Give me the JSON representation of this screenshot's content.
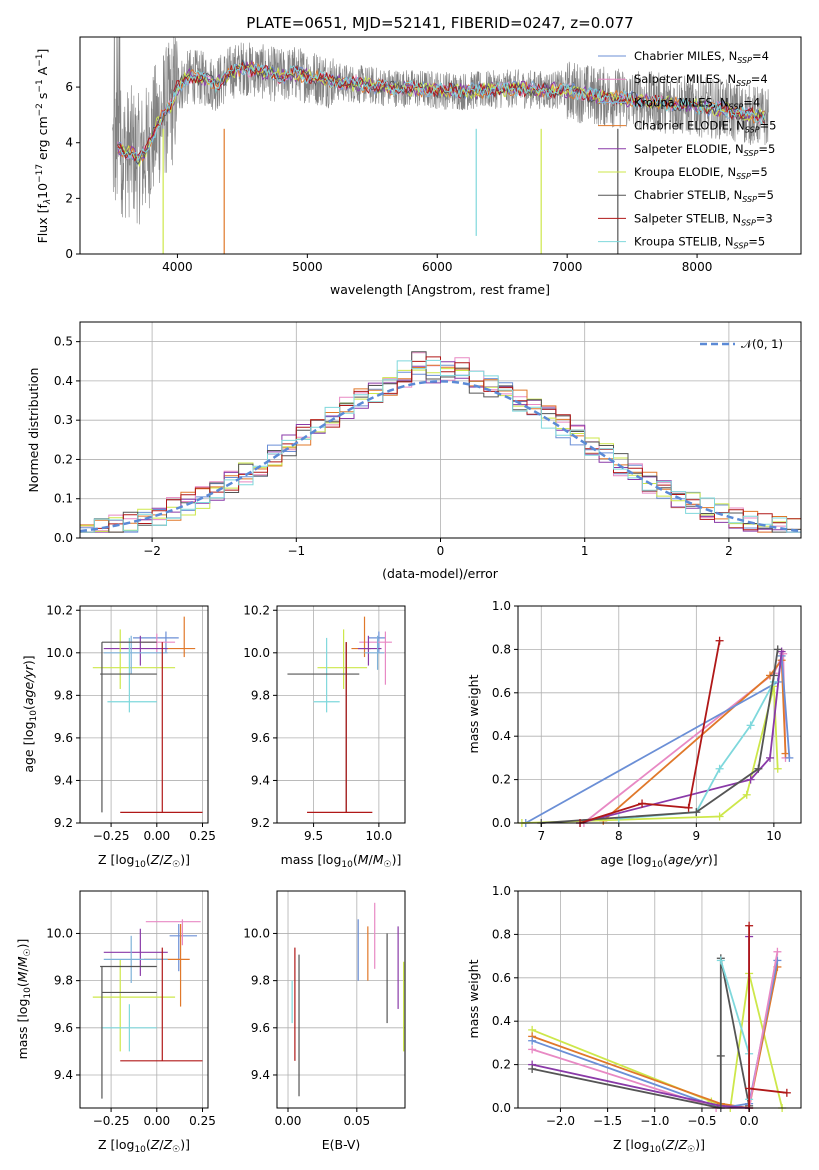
{
  "chart_data": [
    {
      "id": "spectrum",
      "type": "line",
      "title": "PLATE=0651, MJD=52141, FIBERID=0247, z=0.077",
      "xlabel": "wavelength [Angstrom, rest frame]",
      "ylabel": "Flux [f_λ 10^-17 erg cm^-2 s^-1 A^-1]",
      "xlim": [
        3250,
        8800
      ],
      "ylim": [
        0,
        7.8
      ],
      "xticks": [
        4000,
        5000,
        6000,
        7000,
        8000
      ],
      "yticks": [
        0,
        2,
        4,
        6
      ],
      "grid": false,
      "legend_position": "right",
      "observed_color": "#808080",
      "series": [
        {
          "name": "Chabrier MILES, N_SSP=4",
          "color": "#6b8fd6"
        },
        {
          "name": "Salpeter MILES, N_SSP=4",
          "color": "#e889c4"
        },
        {
          "name": "Kroupa MILES, N_SSP=4",
          "color": "#7fb2d9"
        },
        {
          "name": "Chabrier ELODIE, N_SSP=5",
          "color": "#e0782a"
        },
        {
          "name": "Salpeter ELODIE, N_SSP=5",
          "color": "#8a3aa8"
        },
        {
          "name": "Kroupa ELODIE, N_SSP=5",
          "color": "#cde74a"
        },
        {
          "name": "Chabrier STELIB, N_SSP=5",
          "color": "#555555"
        },
        {
          "name": "Salpeter STELIB, N_SSP=3",
          "color": "#b01818"
        },
        {
          "name": "Kroupa STELIB, N_SSP=5",
          "color": "#7fd8dc"
        }
      ],
      "model_continuum": {
        "x": [
          3550,
          3600,
          3650,
          3700,
          3750,
          3800,
          3850,
          3900,
          3950,
          4000,
          4100,
          4200,
          4300,
          4400,
          4500,
          4600,
          4700,
          4800,
          4900,
          5000,
          5200,
          5400,
          5600,
          5800,
          6000,
          6200,
          6400,
          6600,
          6800,
          7000,
          7200,
          7400,
          7600,
          7800,
          8000,
          8200,
          8400,
          8550
        ],
        "y": [
          3.8,
          3.6,
          3.7,
          3.4,
          3.6,
          4.2,
          4.7,
          5.1,
          5.3,
          6.0,
          6.4,
          6.3,
          6.1,
          6.5,
          6.7,
          6.6,
          6.5,
          6.4,
          6.5,
          6.4,
          6.2,
          6.1,
          6.0,
          5.95,
          5.9,
          5.85,
          5.9,
          5.95,
          5.9,
          5.9,
          5.7,
          5.6,
          5.5,
          5.4,
          5.3,
          5.2,
          5.0,
          4.9
        ]
      }
    },
    {
      "id": "residuals",
      "type": "bar",
      "xlabel": "(data-model)/error",
      "ylabel": "Normed distribution",
      "xlim": [
        -2.5,
        2.5
      ],
      "ylim": [
        0,
        0.55
      ],
      "xticks": [
        -2,
        -1,
        0,
        1,
        2
      ],
      "yticks": [
        0.0,
        0.1,
        0.2,
        0.3,
        0.4,
        0.5
      ],
      "grid": true,
      "legend_position": "top-right",
      "reference": {
        "name": "𝒩(0, 1)",
        "color": "#5b8ad6",
        "style": "dashed"
      },
      "bin_width": 0.1
    },
    {
      "id": "age-vs-Z",
      "type": "scatter",
      "xlabel": "Z [log10(Z/Z☉)]",
      "ylabel": "age [log10(age/yr)]",
      "xlim": [
        -0.42,
        0.28
      ],
      "ylim": [
        9.2,
        10.22
      ],
      "xticks": [
        -0.25,
        0.0,
        0.25
      ],
      "yticks": [
        9.2,
        9.4,
        9.6,
        9.8,
        10.0,
        10.2
      ],
      "grid": true,
      "points": [
        {
          "x": 0.05,
          "y": 10.07,
          "xerr": [
            0.18,
            0.07
          ],
          "yerr": [
            0.07,
            0.03
          ],
          "color": "#6b8fd6"
        },
        {
          "x": 0.0,
          "y": 10.05,
          "xerr": [
            0.2,
            0.1
          ],
          "yerr": [
            0.05,
            0.04
          ],
          "color": "#e889c4"
        },
        {
          "x": 0.15,
          "y": 10.02,
          "xerr": [
            0.1,
            0.06
          ],
          "yerr": [
            0.04,
            0.15
          ],
          "color": "#e0782a"
        },
        {
          "x": -0.09,
          "y": 10.02,
          "xerr": [
            0.2,
            0.15
          ],
          "yerr": [
            0.08,
            0.06
          ],
          "color": "#8a3aa8"
        },
        {
          "x": -0.2,
          "y": 9.93,
          "xerr": [
            0.15,
            0.3
          ],
          "yerr": [
            0.1,
            0.18
          ],
          "color": "#cde74a"
        },
        {
          "x": -0.14,
          "y": 10.0,
          "xerr": [
            0.15,
            0.2
          ],
          "yerr": [
            0.1,
            0.08
          ],
          "color": "#7fb2d9"
        },
        {
          "x": -0.15,
          "y": 9.77,
          "xerr": [
            0.12,
            0.15
          ],
          "yerr": [
            0.05,
            0.3
          ],
          "color": "#7fd8dc"
        },
        {
          "x": -0.3,
          "y": 9.9,
          "xerr": [
            0.01,
            0.3
          ],
          "yerr": [
            0.65,
            0.15
          ],
          "color": "#555555"
        },
        {
          "x": 0.03,
          "y": 9.25,
          "xerr": [
            0.23,
            0.22
          ],
          "yerr": [
            0.0,
            0.8
          ],
          "color": "#b01818"
        },
        {
          "x": -0.3,
          "y": 10.05,
          "xerr": [
            0.0,
            0.3
          ],
          "yerr": [
            0.0,
            0.0
          ],
          "color": "#555555"
        }
      ]
    },
    {
      "id": "age-vs-mass",
      "type": "scatter",
      "xlabel": "mass [log10(M/M☉)]",
      "ylabel": "",
      "xlim": [
        9.22,
        10.2
      ],
      "ylim": [
        9.2,
        10.22
      ],
      "xticks": [
        9.5,
        10.0
      ],
      "yticks": [
        9.2,
        9.4,
        9.6,
        9.8,
        10.0,
        10.2
      ],
      "grid": true,
      "points": [
        {
          "x": 10.0,
          "y": 10.07,
          "xerr": [
            0.08,
            0.05
          ],
          "yerr": [
            0.07,
            0.03
          ],
          "color": "#6b8fd6"
        },
        {
          "x": 10.05,
          "y": 10.05,
          "xerr": [
            0.2,
            0.05
          ],
          "yerr": [
            0.2,
            0.05
          ],
          "color": "#e889c4"
        },
        {
          "x": 9.89,
          "y": 10.02,
          "xerr": [
            0.1,
            0.05
          ],
          "yerr": [
            0.04,
            0.15
          ],
          "color": "#e0782a"
        },
        {
          "x": 9.92,
          "y": 10.02,
          "xerr": [
            0.08,
            0.1
          ],
          "yerr": [
            0.08,
            0.06
          ],
          "color": "#8a3aa8"
        },
        {
          "x": 9.73,
          "y": 9.93,
          "xerr": [
            0.2,
            0.18
          ],
          "yerr": [
            0.1,
            0.18
          ],
          "color": "#cde74a"
        },
        {
          "x": 9.99,
          "y": 10.0,
          "xerr": [
            0.1,
            0.05
          ],
          "yerr": [
            0.08,
            0.08
          ],
          "color": "#7fb2d9"
        },
        {
          "x": 9.6,
          "y": 9.77,
          "xerr": [
            0.1,
            0.1
          ],
          "yerr": [
            0.05,
            0.3
          ],
          "color": "#7fd8dc"
        },
        {
          "x": 9.75,
          "y": 9.9,
          "xerr": [
            0.45,
            0.1
          ],
          "yerr": [
            0.65,
            0.15
          ],
          "color": "#555555"
        },
        {
          "x": 9.75,
          "y": 9.25,
          "xerr": [
            0.3,
            0.2
          ],
          "yerr": [
            0.0,
            0.8
          ],
          "color": "#b01818"
        }
      ]
    },
    {
      "id": "mass-weight-vs-age",
      "type": "line",
      "xlabel": "age [log10(age/yr)]",
      "ylabel": "mass weight",
      "xlim": [
        6.7,
        10.35
      ],
      "ylim": [
        0,
        1.0
      ],
      "xticks": [
        7,
        8,
        9,
        10
      ],
      "yticks": [
        0.0,
        0.2,
        0.4,
        0.6,
        0.8,
        1.0
      ],
      "grid": true,
      "series": [
        {
          "color": "#e889c4",
          "x": [
            7.55,
            10.0,
            10.12,
            10.15
          ],
          "y": [
            0.0,
            0.69,
            0.78,
            0.3
          ]
        },
        {
          "color": "#e0782a",
          "x": [
            7.8,
            9.95,
            10.1,
            10.15
          ],
          "y": [
            0.01,
            0.68,
            0.75,
            0.32
          ]
        },
        {
          "color": "#6b8fd6",
          "x": [
            6.8,
            10.05,
            10.1,
            10.2
          ],
          "y": [
            0.0,
            0.65,
            0.77,
            0.3
          ]
        },
        {
          "color": "#cde74a",
          "x": [
            6.75,
            9.3,
            9.65,
            10.0,
            10.05
          ],
          "y": [
            0.0,
            0.03,
            0.13,
            0.63,
            0.25
          ]
        },
        {
          "color": "#8a3aa8",
          "x": [
            7.5,
            9.7,
            9.95,
            10.1
          ],
          "y": [
            0.0,
            0.2,
            0.3,
            0.79
          ]
        },
        {
          "color": "#7fd8dc",
          "x": [
            8.0,
            9.0,
            9.3,
            9.7,
            10.0
          ],
          "y": [
            0.02,
            0.05,
            0.25,
            0.45,
            0.65
          ]
        },
        {
          "color": "#555555",
          "x": [
            7.0,
            9.0,
            9.8,
            10.0,
            10.05
          ],
          "y": [
            0.0,
            0.05,
            0.25,
            0.68,
            0.8
          ]
        },
        {
          "color": "#b01818",
          "x": [
            7.5,
            8.3,
            8.9,
            9.3
          ],
          "y": [
            0.0,
            0.09,
            0.07,
            0.84
          ]
        }
      ]
    },
    {
      "id": "mass-vs-Z",
      "type": "scatter",
      "xlabel": "Z [log10(Z/Z☉)]",
      "ylabel": "mass [log10(M/M☉)]",
      "xlim": [
        -0.42,
        0.28
      ],
      "ylim": [
        9.26,
        10.18
      ],
      "xticks": [
        -0.25,
        0.0,
        0.25
      ],
      "yticks": [
        9.4,
        9.6,
        9.8,
        10.0
      ],
      "grid": true,
      "points": [
        {
          "x": 0.12,
          "y": 9.99,
          "xerr": [
            0.05,
            0.1
          ],
          "yerr": [
            0.15,
            0.05
          ],
          "color": "#6b8fd6"
        },
        {
          "x": 0.14,
          "y": 10.05,
          "xerr": [
            0.2,
            0.1
          ],
          "yerr": [
            0.1,
            0.01
          ],
          "color": "#e889c4"
        },
        {
          "x": 0.13,
          "y": 9.89,
          "xerr": [
            0.2,
            0.05
          ],
          "yerr": [
            0.2,
            0.15
          ],
          "color": "#e0782a"
        },
        {
          "x": -0.09,
          "y": 9.92,
          "xerr": [
            0.2,
            0.15
          ],
          "yerr": [
            0.1,
            0.1
          ],
          "color": "#8a3aa8"
        },
        {
          "x": -0.2,
          "y": 9.73,
          "xerr": [
            0.15,
            0.3
          ],
          "yerr": [
            0.23,
            0.16
          ],
          "color": "#cde74a"
        },
        {
          "x": -0.14,
          "y": 9.89,
          "xerr": [
            0.15,
            0.2
          ],
          "yerr": [
            0.1,
            0.1
          ],
          "color": "#7fb2d9"
        },
        {
          "x": -0.15,
          "y": 9.6,
          "xerr": [
            0.15,
            0.15
          ],
          "yerr": [
            0.1,
            0.1
          ],
          "color": "#7fd8dc"
        },
        {
          "x": -0.3,
          "y": 9.86,
          "xerr": [
            0.01,
            0.3
          ],
          "yerr": [
            0.56,
            0.0
          ],
          "color": "#555555"
        },
        {
          "x": 0.03,
          "y": 9.46,
          "xerr": [
            0.23,
            0.22
          ],
          "yerr": [
            0.0,
            0.48
          ],
          "color": "#b01818"
        },
        {
          "x": -0.3,
          "y": 9.75,
          "xerr": [
            0.0,
            0.3
          ],
          "yerr": [
            0.0,
            0.0
          ],
          "color": "#555555"
        }
      ]
    },
    {
      "id": "mass-vs-ebv",
      "type": "scatter",
      "xlabel": "E(B-V)",
      "ylabel": "",
      "xlim": [
        -0.008,
        0.085
      ],
      "ylim": [
        9.26,
        10.18
      ],
      "xticks": [
        0.0,
        0.05
      ],
      "yticks": [
        9.4,
        9.6,
        9.8,
        10.0
      ],
      "grid": true,
      "segments": [
        {
          "x": 0.003,
          "y": [
            9.62,
            9.8
          ],
          "color": "#7fd8dc"
        },
        {
          "x": 0.005,
          "y": [
            9.46,
            9.94
          ],
          "color": "#b01818"
        },
        {
          "x": 0.008,
          "y": [
            9.31,
            9.91
          ],
          "color": "#555555"
        },
        {
          "x": 0.051,
          "y": [
            9.8,
            10.06
          ],
          "color": "#6b8fd6"
        },
        {
          "x": 0.058,
          "y": [
            9.8,
            10.03
          ],
          "color": "#e0782a"
        },
        {
          "x": 0.063,
          "y": [
            9.85,
            10.13
          ],
          "color": "#e889c4"
        },
        {
          "x": 0.072,
          "y": [
            9.62,
            10.0
          ],
          "color": "#555555"
        },
        {
          "x": 0.08,
          "y": [
            9.68,
            10.03
          ],
          "color": "#8a3aa8"
        },
        {
          "x": 0.084,
          "y": [
            9.5,
            9.88
          ],
          "color": "#cde74a"
        }
      ]
    },
    {
      "id": "mass-weight-vs-Z",
      "type": "line",
      "xlabel": "Z [log10(Z/Z☉)]",
      "ylabel": "mass weight",
      "xlim": [
        -2.45,
        0.55
      ],
      "ylim": [
        0,
        1.0
      ],
      "xticks": [
        -2.0,
        -1.5,
        -1.0,
        -0.5,
        0.0
      ],
      "yticks": [
        0.0,
        0.2,
        0.4,
        0.6,
        0.8,
        1.0
      ],
      "grid": true,
      "series": [
        {
          "color": "#cde74a",
          "x": [
            -2.3,
            -0.4,
            -0.2,
            0.0,
            0.35
          ],
          "y": [
            0.36,
            0.03,
            0.0,
            0.62,
            0.0
          ]
        },
        {
          "color": "#e0782a",
          "x": [
            -2.3,
            -0.3,
            0.0,
            0.3
          ],
          "y": [
            0.33,
            0.02,
            0.0,
            0.65
          ]
        },
        {
          "color": "#6b8fd6",
          "x": [
            -2.3,
            -0.3,
            0.0,
            0.3
          ],
          "y": [
            0.31,
            0.0,
            0.02,
            0.68
          ]
        },
        {
          "color": "#e889c4",
          "x": [
            -2.3,
            -0.35,
            0.0,
            0.3
          ],
          "y": [
            0.27,
            0.0,
            0.0,
            0.72
          ]
        },
        {
          "color": "#8a3aa8",
          "x": [
            -2.3,
            -0.3,
            0.0,
            0.0
          ],
          "y": [
            0.2,
            0.01,
            0.0,
            0.79
          ]
        },
        {
          "color": "#555555",
          "x": [
            -2.3,
            -0.3,
            -0.3,
            -0.3,
            0.0
          ],
          "y": [
            0.18,
            0.0,
            0.24,
            0.69,
            0.01
          ]
        },
        {
          "color": "#7fd8dc",
          "x": [
            -0.3,
            0.0,
            0.0
          ],
          "y": [
            0.68,
            0.25,
            0.04
          ]
        },
        {
          "color": "#b01818",
          "x": [
            0.0,
            0.0,
            0.0,
            0.4
          ],
          "y": [
            0.84,
            0.0,
            0.09,
            0.07
          ]
        }
      ]
    }
  ]
}
